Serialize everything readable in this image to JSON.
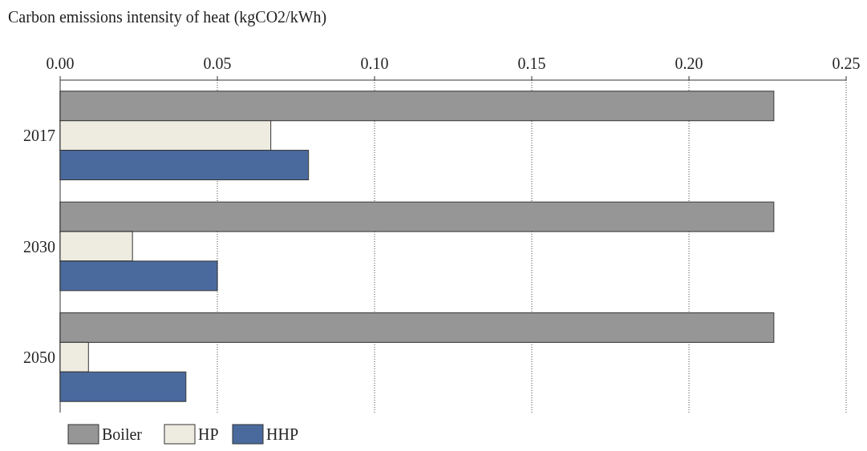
{
  "chart_data": {
    "type": "bar",
    "orientation": "horizontal",
    "xlabel": "Carbon emissions intensity of heat (kgCO2/kWh)",
    "categories": [
      "2017",
      "2030",
      "2050"
    ],
    "series": [
      {
        "name": "Boiler",
        "color": "#969696",
        "values": [
          0.227,
          0.227,
          0.227
        ]
      },
      {
        "name": "HP",
        "color": "#eeece1",
        "values": [
          0.067,
          0.023,
          0.009
        ]
      },
      {
        "name": "HHP",
        "color": "#4a6a9e",
        "values": [
          0.079,
          0.05,
          0.04
        ]
      }
    ],
    "xlim": [
      0,
      0.25
    ],
    "xticks": [
      {
        "value": 0,
        "label": "0.00"
      },
      {
        "value": 0.05,
        "label": "0.05"
      },
      {
        "value": 0.1,
        "label": "0.10"
      },
      {
        "value": 0.15,
        "label": "0.15"
      },
      {
        "value": 0.2,
        "label": "0.20"
      },
      {
        "value": 0.25,
        "label": "0.25"
      }
    ],
    "grid": "x",
    "legend": "bottom left"
  }
}
